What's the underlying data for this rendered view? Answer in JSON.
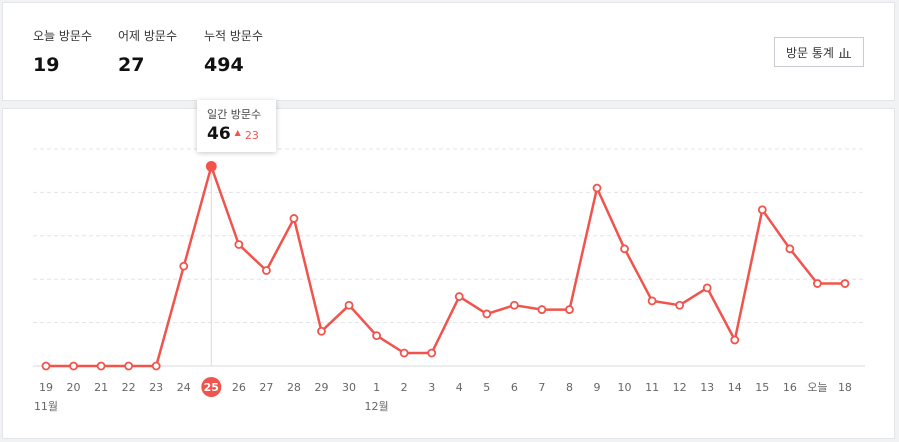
{
  "summary": {
    "today": {
      "label": "오늘 방문수",
      "value": "19"
    },
    "yesterday": {
      "label": "어제 방문수",
      "value": "27"
    },
    "total": {
      "label": "누적 방문수",
      "value": "494"
    }
  },
  "toolbar": {
    "stats_button_label": "방문 통계",
    "stats_button_icon": "bar-chart-icon"
  },
  "tooltip": {
    "title": "일간 방문수",
    "value": "46",
    "delta": "23",
    "delta_icon": "triangle-up-icon"
  },
  "colors": {
    "line": "#f0544c",
    "grid": "#e2e4e8",
    "accent": "#f0544c"
  },
  "chart_data": {
    "type": "line",
    "categories": [
      "19",
      "20",
      "21",
      "22",
      "23",
      "24",
      "25",
      "26",
      "27",
      "28",
      "29",
      "30",
      "1",
      "2",
      "3",
      "4",
      "5",
      "6",
      "7",
      "8",
      "9",
      "10",
      "11",
      "12",
      "13",
      "14",
      "15",
      "16",
      "오늘",
      "18"
    ],
    "series": [
      {
        "values": [
          0,
          0,
          0,
          0,
          0,
          23,
          46,
          28,
          22,
          34,
          8,
          14,
          7,
          3,
          3,
          16,
          12,
          14,
          13,
          13,
          41,
          27,
          15,
          14,
          18,
          6,
          36,
          27,
          19,
          19
        ]
      }
    ],
    "month_labels": [
      {
        "label": "11월",
        "index": 0
      },
      {
        "label": "12월",
        "index": 12
      }
    ],
    "highlight_index": 6,
    "ylim": [
      0,
      50
    ],
    "grid": true,
    "title": "",
    "xlabel": "",
    "ylabel": ""
  }
}
